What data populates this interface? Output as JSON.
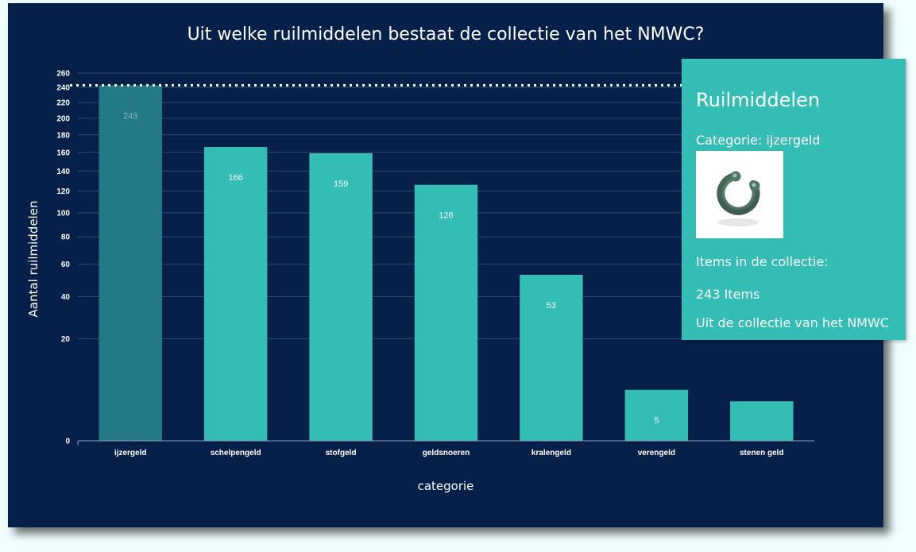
{
  "chart_data": {
    "type": "bar",
    "title": "Uit welke ruilmiddelen bestaat de collectie van het NMWC?",
    "xlabel": "categorie",
    "ylabel": "Aantal ruilmiddelen",
    "scale": "sqrt",
    "ylim": [
      0,
      260
    ],
    "yticks": [
      0,
      20,
      40,
      60,
      80,
      100,
      120,
      140,
      160,
      180,
      200,
      220,
      240,
      260
    ],
    "grid": true,
    "categories": [
      "ijzergeld",
      "schelpengeld",
      "stofgeld",
      "geldsnoeren",
      "kralengeld",
      "verengeld",
      "stenen geld"
    ],
    "values": [
      243,
      166,
      159,
      126,
      53,
      5,
      3
    ],
    "data_labels": [
      "243",
      "166",
      "159",
      "126",
      "53",
      "5",
      ""
    ],
    "highlighted_category": "ijzergeld",
    "reference_line": 243,
    "colors": {
      "bar": "#33bdb4",
      "highlight": "#237a86",
      "background": "#07204a",
      "grid": "#2e4a6e"
    }
  },
  "tooltip": {
    "title": "Ruilmiddelen",
    "category_text": "Categorie: ijzergeld",
    "image_icon": "iron-ring-currency-icon",
    "items_label": "Items in de collectie:",
    "count_text": "243 Items",
    "source_text": "Uit de collectie van het NMWC"
  }
}
